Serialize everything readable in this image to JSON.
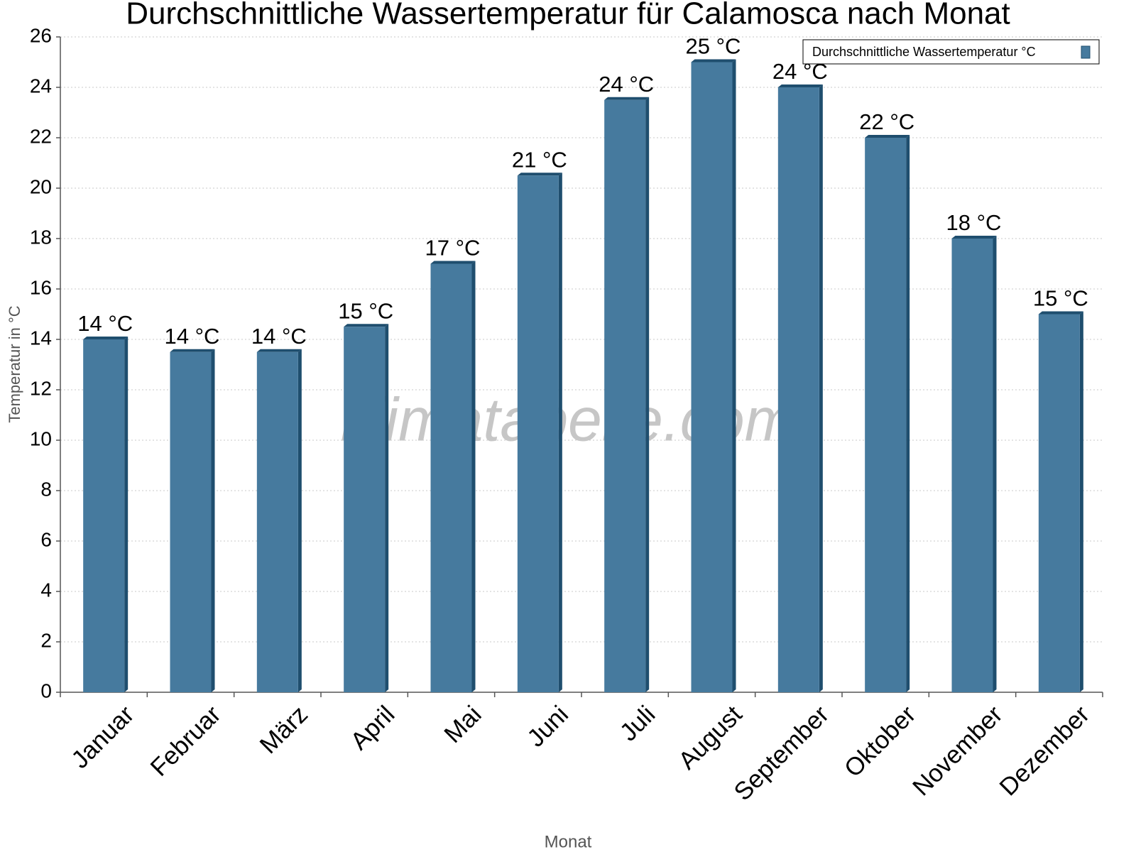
{
  "chart_data": {
    "type": "bar",
    "title": "Durchschnittliche Wassertemperatur für Calamosca nach Monat",
    "x_label": "Monat",
    "y_label": "Temperatur in °C",
    "watermark": "klimatabelle.com",
    "categories": [
      "Januar",
      "Februar",
      "März",
      "April",
      "Mai",
      "Juni",
      "Juli",
      "August",
      "September",
      "Oktober",
      "November",
      "Dezember"
    ],
    "series": [
      {
        "name": "Durchschnittliche Wassertemperatur °C",
        "color": "#467a9e",
        "values": [
          14,
          13.5,
          13.5,
          14.5,
          17,
          20.5,
          23.5,
          25,
          24,
          22,
          18,
          15
        ],
        "value_labels": [
          "14 °C",
          "14 °C",
          "14 °C",
          "15 °C",
          "17 °C",
          "21 °C",
          "24 °C",
          "25 °C",
          "24 °C",
          "22 °C",
          "18 °C",
          "15 °C"
        ]
      }
    ],
    "ylim": [
      0,
      26
    ],
    "yticks": [
      0,
      2,
      4,
      6,
      8,
      10,
      12,
      14,
      16,
      18,
      20,
      22,
      24,
      26
    ],
    "grid": true,
    "legend": "upper right"
  }
}
